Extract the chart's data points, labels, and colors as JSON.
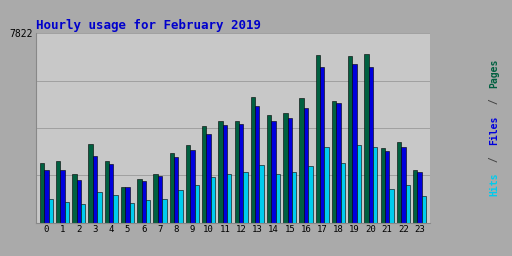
{
  "title": "Hourly usage for February 2019",
  "hours": [
    0,
    1,
    2,
    3,
    4,
    5,
    6,
    7,
    8,
    9,
    10,
    11,
    12,
    13,
    14,
    15,
    16,
    17,
    18,
    19,
    20,
    21,
    22,
    23
  ],
  "pages": [
    600,
    620,
    490,
    790,
    620,
    360,
    440,
    490,
    700,
    780,
    970,
    1020,
    1020,
    1260,
    1080,
    1100,
    1250,
    1680,
    1220,
    1670,
    1690,
    750,
    810,
    530
  ],
  "files": [
    530,
    530,
    430,
    670,
    590,
    360,
    420,
    470,
    660,
    730,
    890,
    980,
    990,
    1170,
    1020,
    1050,
    1150,
    1560,
    1200,
    1590,
    1560,
    720,
    760,
    510
  ],
  "hits": [
    240,
    210,
    190,
    310,
    280,
    200,
    230,
    240,
    330,
    380,
    460,
    490,
    510,
    580,
    490,
    510,
    570,
    760,
    600,
    780,
    760,
    340,
    380,
    270
  ],
  "color_pages": "#006040",
  "color_files": "#0000dd",
  "color_hits": "#00ccee",
  "bg_color": "#aaaaaa",
  "plot_bg": "#c8c8c8",
  "title_color": "#0000cc",
  "bar_width": 0.27,
  "ylim": [
    0,
    1900
  ],
  "ytick_val": 1900,
  "ytick_label": "7822",
  "grid_levels": [
    0,
    475,
    950,
    1425,
    1900
  ]
}
